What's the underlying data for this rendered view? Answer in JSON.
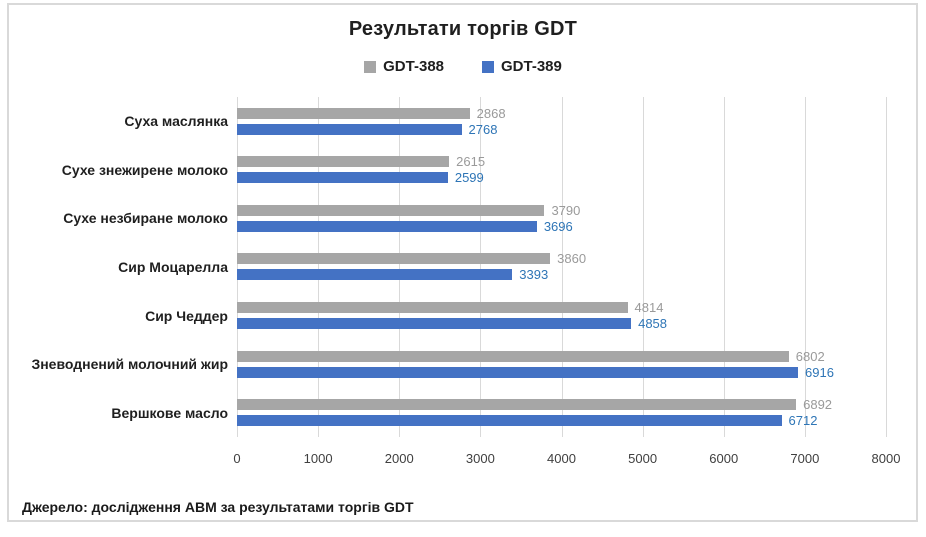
{
  "title": "Результати торгів GDT",
  "footer": "Джерело: дослідження АВМ за результатами торгів GDT",
  "colors": {
    "series_gdt_388": "#A6A6A6",
    "series_gdt_389": "#4472C4",
    "gridline": "#D9D9D9",
    "frame_border": "#D9D9D9",
    "label_gdt_388": "#9A9A9A",
    "label_gdt_389": "#2E75B6"
  },
  "chart_data": {
    "type": "bar",
    "orientation": "horizontal",
    "title": "Результати торгів GDT",
    "categories": [
      "Суха маслянка",
      "Сухе знежирене молоко",
      "Сухе незбиране молоко",
      "Сир Моцарелла",
      "Сир Чеддер",
      "Зневоднений молочний жир",
      "Вершкове масло"
    ],
    "series": [
      {
        "name": "GDT-388",
        "color": "#A6A6A6",
        "label_color": "#9A9A9A",
        "values": [
          2868,
          2615,
          3790,
          3860,
          4814,
          6802,
          6892
        ]
      },
      {
        "name": "GDT-389",
        "color": "#4472C4",
        "label_color": "#2E75B6",
        "values": [
          2768,
          2599,
          3696,
          3393,
          4858,
          6916,
          6712
        ]
      }
    ],
    "xlabel": "",
    "ylabel": "",
    "xlim": [
      0,
      8000
    ],
    "x_ticks": [
      0,
      1000,
      2000,
      3000,
      4000,
      5000,
      6000,
      7000,
      8000
    ],
    "grid": true,
    "legend_position": "top",
    "data_labels": true
  }
}
